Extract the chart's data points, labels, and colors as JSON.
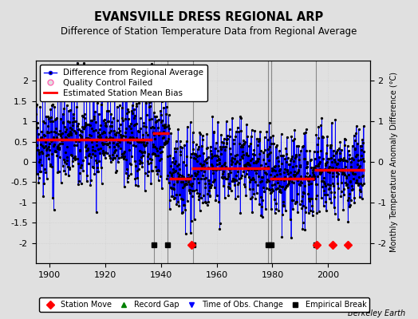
{
  "title": "EVANSVILLE DRESS REGIONAL ARP",
  "subtitle": "Difference of Station Temperature Data from Regional Average",
  "ylabel": "Monthly Temperature Anomaly Difference (°C)",
  "ylim": [
    -2.5,
    2.5
  ],
  "xlim": [
    1895,
    2015
  ],
  "xticks": [
    1900,
    1920,
    1940,
    1960,
    1980,
    2000
  ],
  "yticks_left": [
    -2,
    -1.5,
    -1,
    -0.5,
    0,
    0.5,
    1,
    1.5,
    2
  ],
  "yticks_right": [
    -2,
    -1,
    0,
    1,
    2
  ],
  "background_color": "#e0e0e0",
  "plot_bg_color": "#e0e0e0",
  "line_color": "#0000ff",
  "dot_color": "#000000",
  "bias_color": "#ff0000",
  "seed": 42,
  "station_moves": [
    1951.0,
    1996.0,
    2001.5,
    2007.0
  ],
  "empirical_breaks_x": [
    1937.5,
    1942.5,
    1951.5,
    1978.5,
    1979.5,
    1995.5
  ],
  "vertical_lines": [
    1937.5,
    1942.5,
    1951.5,
    1978.5,
    1979.5,
    1995.5
  ],
  "bias_segments": [
    {
      "start": 1895,
      "end": 1937,
      "value": 0.55
    },
    {
      "start": 1937,
      "end": 1943,
      "value": 0.7
    },
    {
      "start": 1943,
      "end": 1951,
      "value": -0.42
    },
    {
      "start": 1951,
      "end": 1979,
      "value": -0.15
    },
    {
      "start": 1979,
      "end": 1995,
      "value": -0.42
    },
    {
      "start": 1995,
      "end": 2013,
      "value": -0.2
    }
  ],
  "berkeley_earth_text": "Berkeley Earth",
  "legend_fontsize": 7.5,
  "title_fontsize": 10.5,
  "subtitle_fontsize": 8.5,
  "marker_y": -2.05
}
